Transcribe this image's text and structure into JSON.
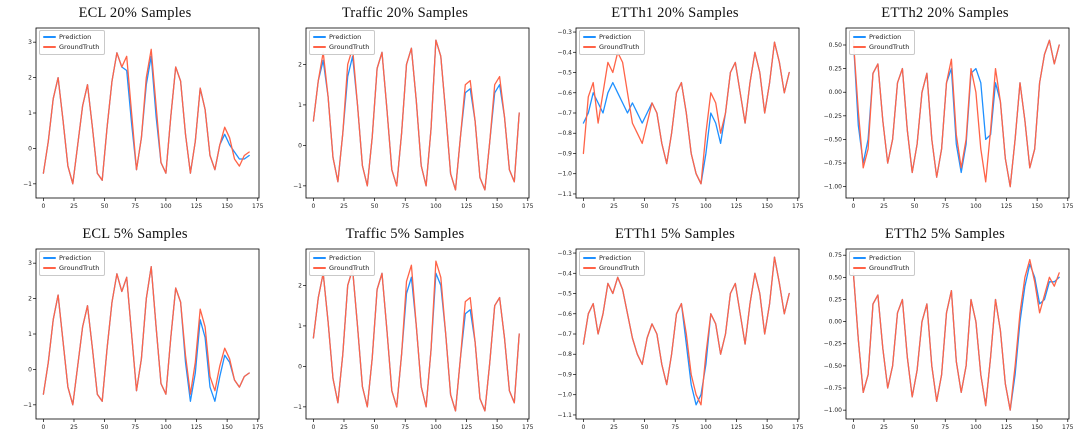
{
  "figure": {
    "background": "#ffffff"
  },
  "colors": {
    "prediction": "#1e90ff",
    "groundtruth": "#ff6347",
    "axis": "#000000",
    "tick_text": "#222222"
  },
  "axis": {
    "xlim": [
      -6,
      176
    ],
    "xticks": [
      0,
      25,
      50,
      75,
      100,
      125,
      150,
      175
    ]
  },
  "chart_data": [
    {
      "type": "line",
      "title": "ECL 20% Samples",
      "xlabel": "",
      "ylabel": "",
      "legend_position": "upper left",
      "ylim": [
        -1.4,
        3.4
      ],
      "yticks": [
        "-1",
        "0",
        "1",
        "2",
        "3"
      ],
      "x_start": 0,
      "x_step": 4,
      "series": [
        {
          "name": "Prediction",
          "color": "#1e90ff",
          "values": [
            -0.7,
            0.2,
            1.4,
            2.0,
            0.8,
            -0.5,
            -1.0,
            0.1,
            1.2,
            1.8,
            0.6,
            -0.7,
            -0.9,
            0.6,
            1.9,
            2.7,
            2.3,
            2.2,
            0.7,
            -0.6,
            0.3,
            1.8,
            2.6,
            0.9,
            -0.4,
            -0.7,
            0.9,
            2.3,
            1.9,
            0.4,
            -0.7,
            0.2,
            1.7,
            1.1,
            -0.2,
            -0.6,
            0.1,
            0.4,
            0.1,
            -0.1,
            -0.3,
            -0.3,
            -0.2
          ]
        },
        {
          "name": "GroundTruth",
          "color": "#ff6347",
          "values": [
            -0.7,
            0.2,
            1.4,
            2.0,
            0.8,
            -0.5,
            -1.0,
            0.1,
            1.2,
            1.8,
            0.6,
            -0.7,
            -0.9,
            0.6,
            1.9,
            2.7,
            2.3,
            2.6,
            1.0,
            -0.6,
            0.3,
            2.0,
            2.8,
            1.2,
            -0.4,
            -0.7,
            0.9,
            2.3,
            1.9,
            0.4,
            -0.7,
            0.2,
            1.7,
            1.1,
            -0.2,
            -0.6,
            0.1,
            0.6,
            0.3,
            -0.3,
            -0.5,
            -0.2,
            -0.1
          ]
        }
      ]
    },
    {
      "type": "line",
      "title": "Traffic 20% Samples",
      "xlabel": "",
      "ylabel": "",
      "legend_position": "upper left",
      "ylim": [
        -1.3,
        2.9
      ],
      "yticks": [
        "-1",
        "0",
        "1",
        "2"
      ],
      "x_start": 0,
      "x_step": 4,
      "series": [
        {
          "name": "Prediction",
          "color": "#1e90ff",
          "values": [
            0.6,
            1.6,
            2.1,
            1.2,
            -0.3,
            -0.9,
            0.3,
            1.7,
            2.2,
            1.0,
            -0.5,
            -1.0,
            0.2,
            1.9,
            2.3,
            0.9,
            -0.6,
            -1.0,
            0.3,
            2.0,
            2.4,
            1.1,
            -0.5,
            -1.0,
            0.4,
            2.6,
            2.2,
            0.8,
            -0.7,
            -1.1,
            0.2,
            1.3,
            1.4,
            0.6,
            -0.8,
            -1.1,
            0.1,
            1.3,
            1.5,
            0.7,
            -0.6,
            -0.9,
            0.8
          ]
        },
        {
          "name": "GroundTruth",
          "color": "#ff6347",
          "values": [
            0.6,
            1.6,
            2.3,
            1.2,
            -0.3,
            -0.9,
            0.3,
            2.0,
            2.4,
            1.0,
            -0.5,
            -1.0,
            0.2,
            1.9,
            2.3,
            0.9,
            -0.6,
            -1.0,
            0.3,
            2.0,
            2.4,
            1.1,
            -0.5,
            -1.0,
            0.4,
            2.6,
            2.2,
            0.8,
            -0.7,
            -1.1,
            0.2,
            1.5,
            1.6,
            0.6,
            -0.8,
            -1.1,
            0.1,
            1.5,
            1.7,
            0.7,
            -0.6,
            -0.9,
            0.8
          ]
        }
      ]
    },
    {
      "type": "line",
      "title": "ETTh1 20% Samples",
      "xlabel": "",
      "ylabel": "",
      "legend_position": "upper left",
      "ylim": [
        -1.12,
        -0.28
      ],
      "yticks": [
        "-0.3",
        "-0.4",
        "-0.5",
        "-0.6",
        "-0.7",
        "-0.8",
        "-0.9",
        "-1.0",
        "-1.1"
      ],
      "x_start": 0,
      "x_step": 4,
      "series": [
        {
          "name": "Prediction",
          "color": "#1e90ff",
          "values": [
            -0.75,
            -0.7,
            -0.6,
            -0.65,
            -0.7,
            -0.6,
            -0.55,
            -0.6,
            -0.65,
            -0.7,
            -0.65,
            -0.7,
            -0.75,
            -0.7,
            -0.65,
            -0.7,
            -0.85,
            -0.95,
            -0.8,
            -0.6,
            -0.55,
            -0.7,
            -0.9,
            -1.0,
            -1.05,
            -0.9,
            -0.7,
            -0.75,
            -0.85,
            -0.7,
            -0.5,
            -0.45,
            -0.6,
            -0.75,
            -0.55,
            -0.4,
            -0.5,
            -0.7,
            -0.55,
            -0.35,
            -0.45,
            -0.6,
            -0.5
          ]
        },
        {
          "name": "GroundTruth",
          "color": "#ff6347",
          "values": [
            -0.9,
            -0.62,
            -0.55,
            -0.75,
            -0.6,
            -0.45,
            -0.5,
            -0.4,
            -0.45,
            -0.6,
            -0.75,
            -0.8,
            -0.85,
            -0.75,
            -0.65,
            -0.7,
            -0.85,
            -0.95,
            -0.8,
            -0.6,
            -0.55,
            -0.7,
            -0.9,
            -1.0,
            -1.05,
            -0.8,
            -0.6,
            -0.65,
            -0.8,
            -0.7,
            -0.5,
            -0.45,
            -0.6,
            -0.75,
            -0.55,
            -0.4,
            -0.5,
            -0.7,
            -0.55,
            -0.35,
            -0.45,
            -0.6,
            -0.5
          ]
        }
      ]
    },
    {
      "type": "line",
      "title": "ETTh2 20% Samples",
      "xlabel": "",
      "ylabel": "",
      "legend_position": "upper left",
      "ylim": [
        -1.12,
        0.68
      ],
      "yticks": [
        "0.50",
        "0.25",
        "0.00",
        "-0.25",
        "-0.50",
        "-0.75",
        "-1.00"
      ],
      "x_start": 0,
      "x_step": 4,
      "series": [
        {
          "name": "Prediction",
          "color": "#1e90ff",
          "values": [
            0.55,
            -0.35,
            -0.75,
            -0.5,
            0.2,
            0.3,
            -0.3,
            -0.75,
            -0.5,
            0.1,
            0.25,
            -0.4,
            -0.85,
            -0.55,
            0.0,
            0.2,
            -0.5,
            -0.9,
            -0.6,
            0.1,
            0.25,
            -0.55,
            -0.85,
            -0.55,
            0.2,
            0.25,
            0.1,
            -0.5,
            -0.45,
            0.1,
            -0.1,
            -0.7,
            -1.0,
            -0.5,
            0.1,
            -0.3,
            -0.8,
            -0.6,
            0.1,
            0.4,
            0.55,
            0.3,
            0.5
          ]
        },
        {
          "name": "GroundTruth",
          "color": "#ff6347",
          "values": [
            0.55,
            -0.2,
            -0.8,
            -0.6,
            0.2,
            0.3,
            -0.3,
            -0.75,
            -0.5,
            0.1,
            0.25,
            -0.4,
            -0.85,
            -0.55,
            0.0,
            0.2,
            -0.5,
            -0.9,
            -0.6,
            0.1,
            0.35,
            -0.45,
            -0.8,
            -0.5,
            0.25,
            0.0,
            -0.6,
            -0.95,
            -0.4,
            0.25,
            -0.1,
            -0.7,
            -1.0,
            -0.5,
            0.1,
            -0.3,
            -0.8,
            -0.6,
            0.1,
            0.4,
            0.55,
            0.3,
            0.5
          ]
        }
      ]
    },
    {
      "type": "line",
      "title": "ECL 5% Samples",
      "xlabel": "",
      "ylabel": "",
      "legend_position": "upper left",
      "ylim": [
        -1.4,
        3.4
      ],
      "yticks": [
        "-1",
        "0",
        "1",
        "2",
        "3"
      ],
      "x_start": 0,
      "x_step": 4,
      "series": [
        {
          "name": "Prediction",
          "color": "#1e90ff",
          "values": [
            -0.7,
            0.2,
            1.4,
            2.1,
            0.8,
            -0.5,
            -1.0,
            0.1,
            1.2,
            1.8,
            0.6,
            -0.7,
            -0.9,
            0.6,
            1.9,
            2.7,
            2.2,
            2.6,
            1.0,
            -0.6,
            0.3,
            2.0,
            2.9,
            1.2,
            -0.4,
            -0.7,
            0.9,
            2.3,
            1.9,
            0.2,
            -0.9,
            -0.1,
            1.4,
            0.9,
            -0.5,
            -0.9,
            -0.2,
            0.4,
            0.2,
            -0.3,
            -0.5,
            -0.2,
            -0.1
          ]
        },
        {
          "name": "GroundTruth",
          "color": "#ff6347",
          "values": [
            -0.7,
            0.2,
            1.4,
            2.1,
            0.8,
            -0.5,
            -1.0,
            0.1,
            1.2,
            1.8,
            0.6,
            -0.7,
            -0.9,
            0.6,
            1.9,
            2.7,
            2.2,
            2.6,
            1.0,
            -0.6,
            0.3,
            2.0,
            2.9,
            1.2,
            -0.4,
            -0.7,
            0.9,
            2.3,
            1.9,
            0.4,
            -0.7,
            0.2,
            1.7,
            1.2,
            -0.2,
            -0.6,
            0.1,
            0.6,
            0.3,
            -0.3,
            -0.5,
            -0.2,
            -0.1
          ]
        }
      ]
    },
    {
      "type": "line",
      "title": "Traffic 5% Samples",
      "xlabel": "",
      "ylabel": "",
      "legend_position": "upper left",
      "ylim": [
        -1.3,
        2.9
      ],
      "yticks": [
        "-1",
        "0",
        "1",
        "2"
      ],
      "x_start": 0,
      "x_step": 4,
      "series": [
        {
          "name": "Prediction",
          "color": "#1e90ff",
          "values": [
            0.7,
            1.7,
            2.3,
            1.1,
            -0.3,
            -0.9,
            0.3,
            2.0,
            2.4,
            1.0,
            -0.5,
            -1.0,
            0.2,
            1.9,
            2.3,
            0.9,
            -0.6,
            -1.0,
            0.3,
            1.8,
            2.2,
            1.0,
            -0.5,
            -1.0,
            0.4,
            2.3,
            2.0,
            0.8,
            -0.7,
            -1.1,
            0.2,
            1.3,
            1.4,
            0.6,
            -0.8,
            -1.1,
            0.1,
            1.5,
            1.7,
            0.7,
            -0.6,
            -0.9,
            0.8
          ]
        },
        {
          "name": "GroundTruth",
          "color": "#ff6347",
          "values": [
            0.7,
            1.7,
            2.3,
            1.1,
            -0.3,
            -0.9,
            0.3,
            2.0,
            2.4,
            1.0,
            -0.5,
            -1.0,
            0.2,
            1.9,
            2.3,
            0.9,
            -0.6,
            -1.0,
            0.3,
            2.1,
            2.5,
            1.0,
            -0.5,
            -1.0,
            0.4,
            2.6,
            2.2,
            0.8,
            -0.7,
            -1.1,
            0.2,
            1.6,
            1.7,
            0.6,
            -0.8,
            -1.1,
            0.1,
            1.5,
            1.7,
            0.7,
            -0.6,
            -0.9,
            0.8
          ]
        }
      ]
    },
    {
      "type": "line",
      "title": "ETTh1 5% Samples",
      "xlabel": "",
      "ylabel": "",
      "legend_position": "upper left",
      "ylim": [
        -1.12,
        -0.28
      ],
      "yticks": [
        "-0.3",
        "-0.4",
        "-0.5",
        "-0.6",
        "-0.7",
        "-0.8",
        "-0.9",
        "-1.0",
        "-1.1"
      ],
      "x_start": 0,
      "x_step": 4,
      "series": [
        {
          "name": "Prediction",
          "color": "#1e90ff",
          "values": [
            -0.75,
            -0.6,
            -0.55,
            -0.7,
            -0.6,
            -0.45,
            -0.5,
            -0.42,
            -0.48,
            -0.6,
            -0.72,
            -0.8,
            -0.85,
            -0.72,
            -0.65,
            -0.7,
            -0.85,
            -0.95,
            -0.8,
            -0.6,
            -0.55,
            -0.75,
            -0.95,
            -1.05,
            -1.0,
            -0.85,
            -0.6,
            -0.65,
            -0.8,
            -0.7,
            -0.5,
            -0.45,
            -0.6,
            -0.75,
            -0.55,
            -0.4,
            -0.5,
            -0.7,
            -0.55,
            -0.32,
            -0.45,
            -0.6,
            -0.5
          ]
        },
        {
          "name": "GroundTruth",
          "color": "#ff6347",
          "values": [
            -0.75,
            -0.6,
            -0.55,
            -0.7,
            -0.6,
            -0.45,
            -0.5,
            -0.42,
            -0.48,
            -0.6,
            -0.72,
            -0.8,
            -0.85,
            -0.72,
            -0.65,
            -0.7,
            -0.85,
            -0.95,
            -0.8,
            -0.6,
            -0.55,
            -0.7,
            -0.9,
            -1.0,
            -1.05,
            -0.8,
            -0.6,
            -0.65,
            -0.8,
            -0.7,
            -0.5,
            -0.45,
            -0.6,
            -0.75,
            -0.55,
            -0.4,
            -0.5,
            -0.7,
            -0.55,
            -0.32,
            -0.45,
            -0.6,
            -0.5
          ]
        }
      ]
    },
    {
      "type": "line",
      "title": "ETTh2 5% Samples",
      "xlabel": "",
      "ylabel": "",
      "legend_position": "upper left",
      "ylim": [
        -1.1,
        0.82
      ],
      "yticks": [
        "0.75",
        "0.50",
        "0.25",
        "0.00",
        "-0.25",
        "-0.50",
        "-0.75",
        "-1.00"
      ],
      "x_start": 0,
      "x_step": 4,
      "series": [
        {
          "name": "Prediction",
          "color": "#1e90ff",
          "values": [
            0.55,
            -0.2,
            -0.8,
            -0.6,
            0.2,
            0.3,
            -0.3,
            -0.75,
            -0.5,
            0.1,
            0.25,
            -0.4,
            -0.85,
            -0.55,
            0.0,
            0.2,
            -0.5,
            -0.9,
            -0.6,
            0.1,
            0.35,
            -0.45,
            -0.8,
            -0.5,
            0.25,
            0.0,
            -0.6,
            -0.95,
            -0.4,
            0.25,
            -0.1,
            -0.7,
            -1.0,
            -0.6,
            0.0,
            0.4,
            0.65,
            0.5,
            0.2,
            0.25,
            0.45,
            0.45,
            0.5
          ]
        },
        {
          "name": "GroundTruth",
          "color": "#ff6347",
          "values": [
            0.55,
            -0.2,
            -0.8,
            -0.6,
            0.2,
            0.3,
            -0.3,
            -0.75,
            -0.5,
            0.1,
            0.25,
            -0.4,
            -0.85,
            -0.55,
            0.0,
            0.2,
            -0.5,
            -0.9,
            -0.6,
            0.1,
            0.35,
            -0.45,
            -0.8,
            -0.5,
            0.25,
            0.0,
            -0.6,
            -0.95,
            -0.4,
            0.25,
            -0.1,
            -0.7,
            -1.0,
            -0.5,
            0.1,
            0.5,
            0.7,
            0.45,
            0.1,
            0.3,
            0.5,
            0.4,
            0.55
          ]
        }
      ]
    }
  ]
}
